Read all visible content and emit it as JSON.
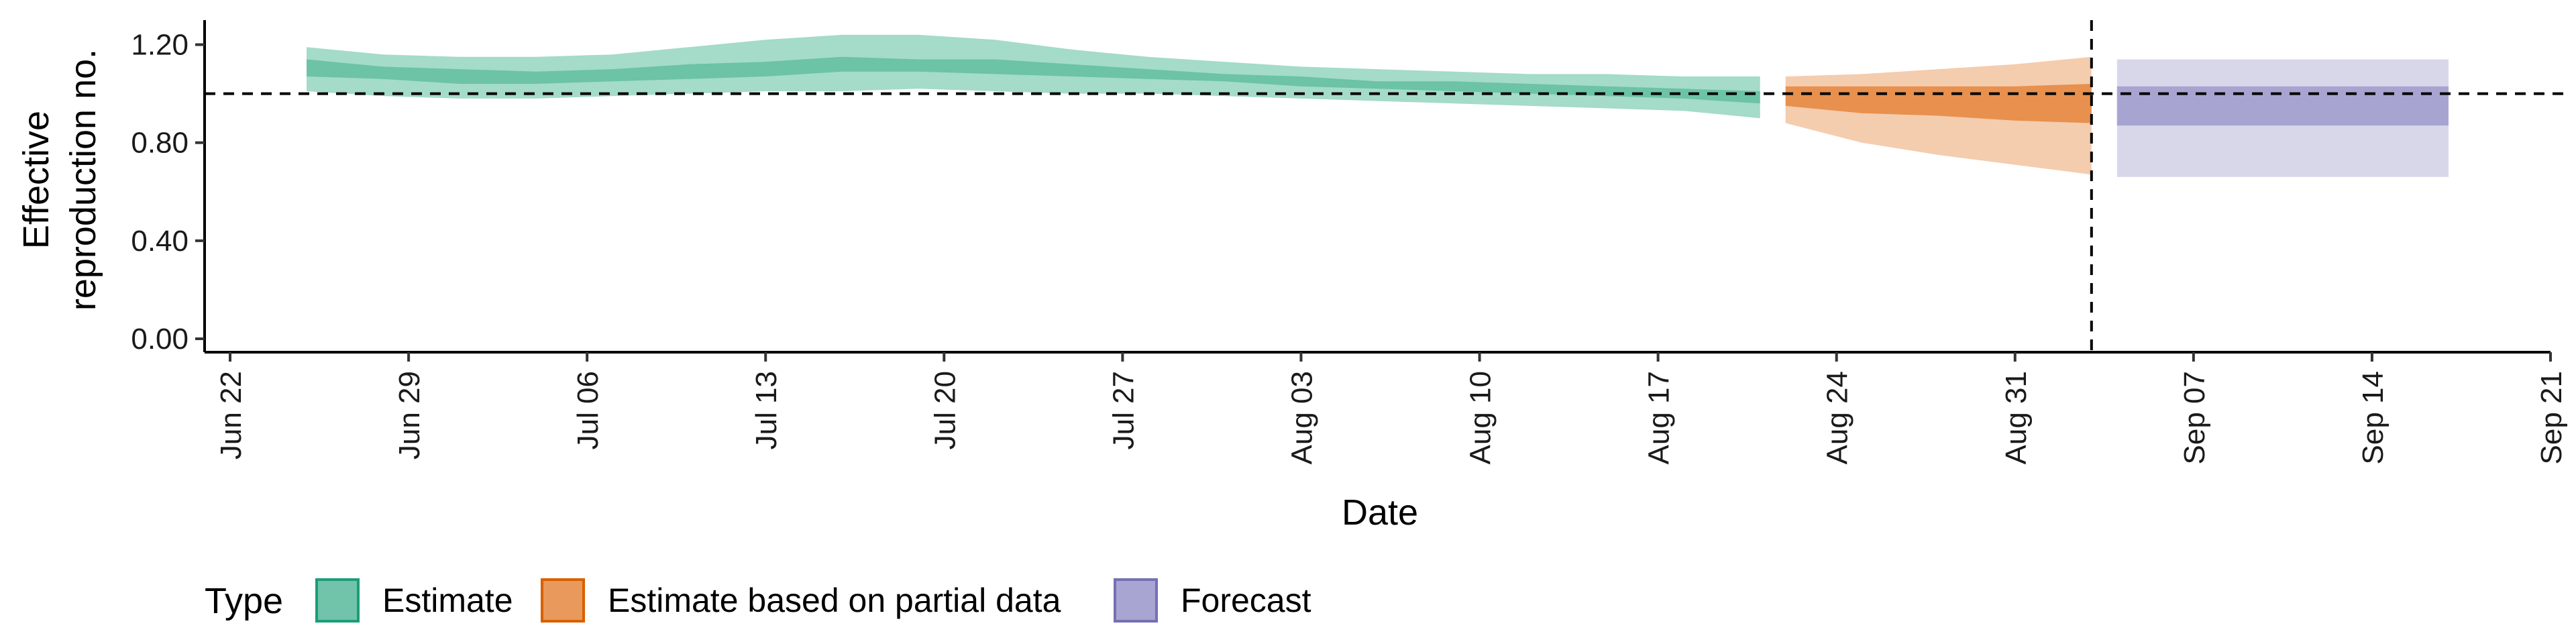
{
  "chart_data": {
    "type": "area",
    "xlabel": "Date",
    "ylabel_lines": [
      "Effective",
      "reproduction no."
    ],
    "x_ticks": [
      "Jun 22",
      "Jun 29",
      "Jul 06",
      "Jul 13",
      "Jul 20",
      "Jul 27",
      "Aug 03",
      "Aug 10",
      "Aug 17",
      "Aug 24",
      "Aug 31",
      "Sep 07",
      "Sep 14",
      "Sep 21"
    ],
    "x_tick_dates": [
      "2020-06-22",
      "2020-06-29",
      "2020-07-06",
      "2020-07-13",
      "2020-07-20",
      "2020-07-27",
      "2020-08-03",
      "2020-08-10",
      "2020-08-17",
      "2020-08-24",
      "2020-08-31",
      "2020-09-07",
      "2020-09-14",
      "2020-09-21"
    ],
    "xlim": [
      "2020-06-21",
      "2020-09-21"
    ],
    "y_ticks": [
      "0.00",
      "0.40",
      "0.80",
      "1.20"
    ],
    "y_tick_values": [
      0,
      0.4,
      0.8,
      1.2
    ],
    "ylim": [
      0,
      1.3
    ],
    "reference_line_y": 1.0,
    "vertical_line_date": "2020-09-03",
    "legend": {
      "title": "Type",
      "position": "bottom",
      "items": [
        {
          "label": "Estimate",
          "color": "#1b9e77"
        },
        {
          "label": "Estimate based on partial data",
          "color": "#d95f02"
        },
        {
          "label": "Forecast",
          "color": "#7570b3"
        }
      ]
    },
    "series": [
      {
        "name": "Estimate",
        "color": "#1b9e77",
        "x": [
          "2020-06-25",
          "2020-06-28",
          "2020-07-01",
          "2020-07-04",
          "2020-07-07",
          "2020-07-10",
          "2020-07-13",
          "2020-07-16",
          "2020-07-19",
          "2020-07-22",
          "2020-07-25",
          "2020-07-28",
          "2020-07-31",
          "2020-08-03",
          "2020-08-06",
          "2020-08-09",
          "2020-08-12",
          "2020-08-15",
          "2020-08-18",
          "2020-08-21"
        ],
        "outer_lower": [
          1.01,
          0.99,
          0.98,
          0.98,
          0.99,
          1.0,
          1.01,
          1.01,
          1.02,
          1.01,
          1.0,
          1.0,
          0.99,
          0.98,
          0.97,
          0.96,
          0.95,
          0.94,
          0.93,
          0.9
        ],
        "inner_lower": [
          1.07,
          1.06,
          1.04,
          1.04,
          1.05,
          1.06,
          1.07,
          1.09,
          1.09,
          1.08,
          1.07,
          1.06,
          1.05,
          1.03,
          1.02,
          1.01,
          1.0,
          0.99,
          0.98,
          0.96
        ],
        "inner_upper": [
          1.14,
          1.11,
          1.1,
          1.09,
          1.1,
          1.12,
          1.13,
          1.15,
          1.14,
          1.14,
          1.12,
          1.1,
          1.08,
          1.07,
          1.05,
          1.05,
          1.04,
          1.03,
          1.02,
          1.01
        ],
        "outer_upper": [
          1.19,
          1.16,
          1.15,
          1.15,
          1.16,
          1.19,
          1.22,
          1.24,
          1.24,
          1.22,
          1.18,
          1.15,
          1.13,
          1.11,
          1.1,
          1.09,
          1.08,
          1.08,
          1.07,
          1.07
        ]
      },
      {
        "name": "Estimate based on partial data",
        "color": "#d95f02",
        "x": [
          "2020-08-22",
          "2020-08-25",
          "2020-08-28",
          "2020-08-31",
          "2020-09-03"
        ],
        "outer_lower": [
          0.88,
          0.8,
          0.75,
          0.71,
          0.67
        ],
        "inner_lower": [
          0.95,
          0.92,
          0.91,
          0.89,
          0.88
        ],
        "inner_upper": [
          1.03,
          1.03,
          1.03,
          1.03,
          1.04
        ],
        "outer_upper": [
          1.07,
          1.08,
          1.1,
          1.12,
          1.15
        ]
      },
      {
        "name": "Forecast",
        "color": "#7570b3",
        "x": [
          "2020-09-04",
          "2020-09-17"
        ],
        "outer_lower": [
          0.66,
          0.66
        ],
        "inner_lower": [
          0.87,
          0.87
        ],
        "inner_upper": [
          1.03,
          1.03
        ],
        "outer_upper": [
          1.14,
          1.14
        ]
      }
    ]
  }
}
